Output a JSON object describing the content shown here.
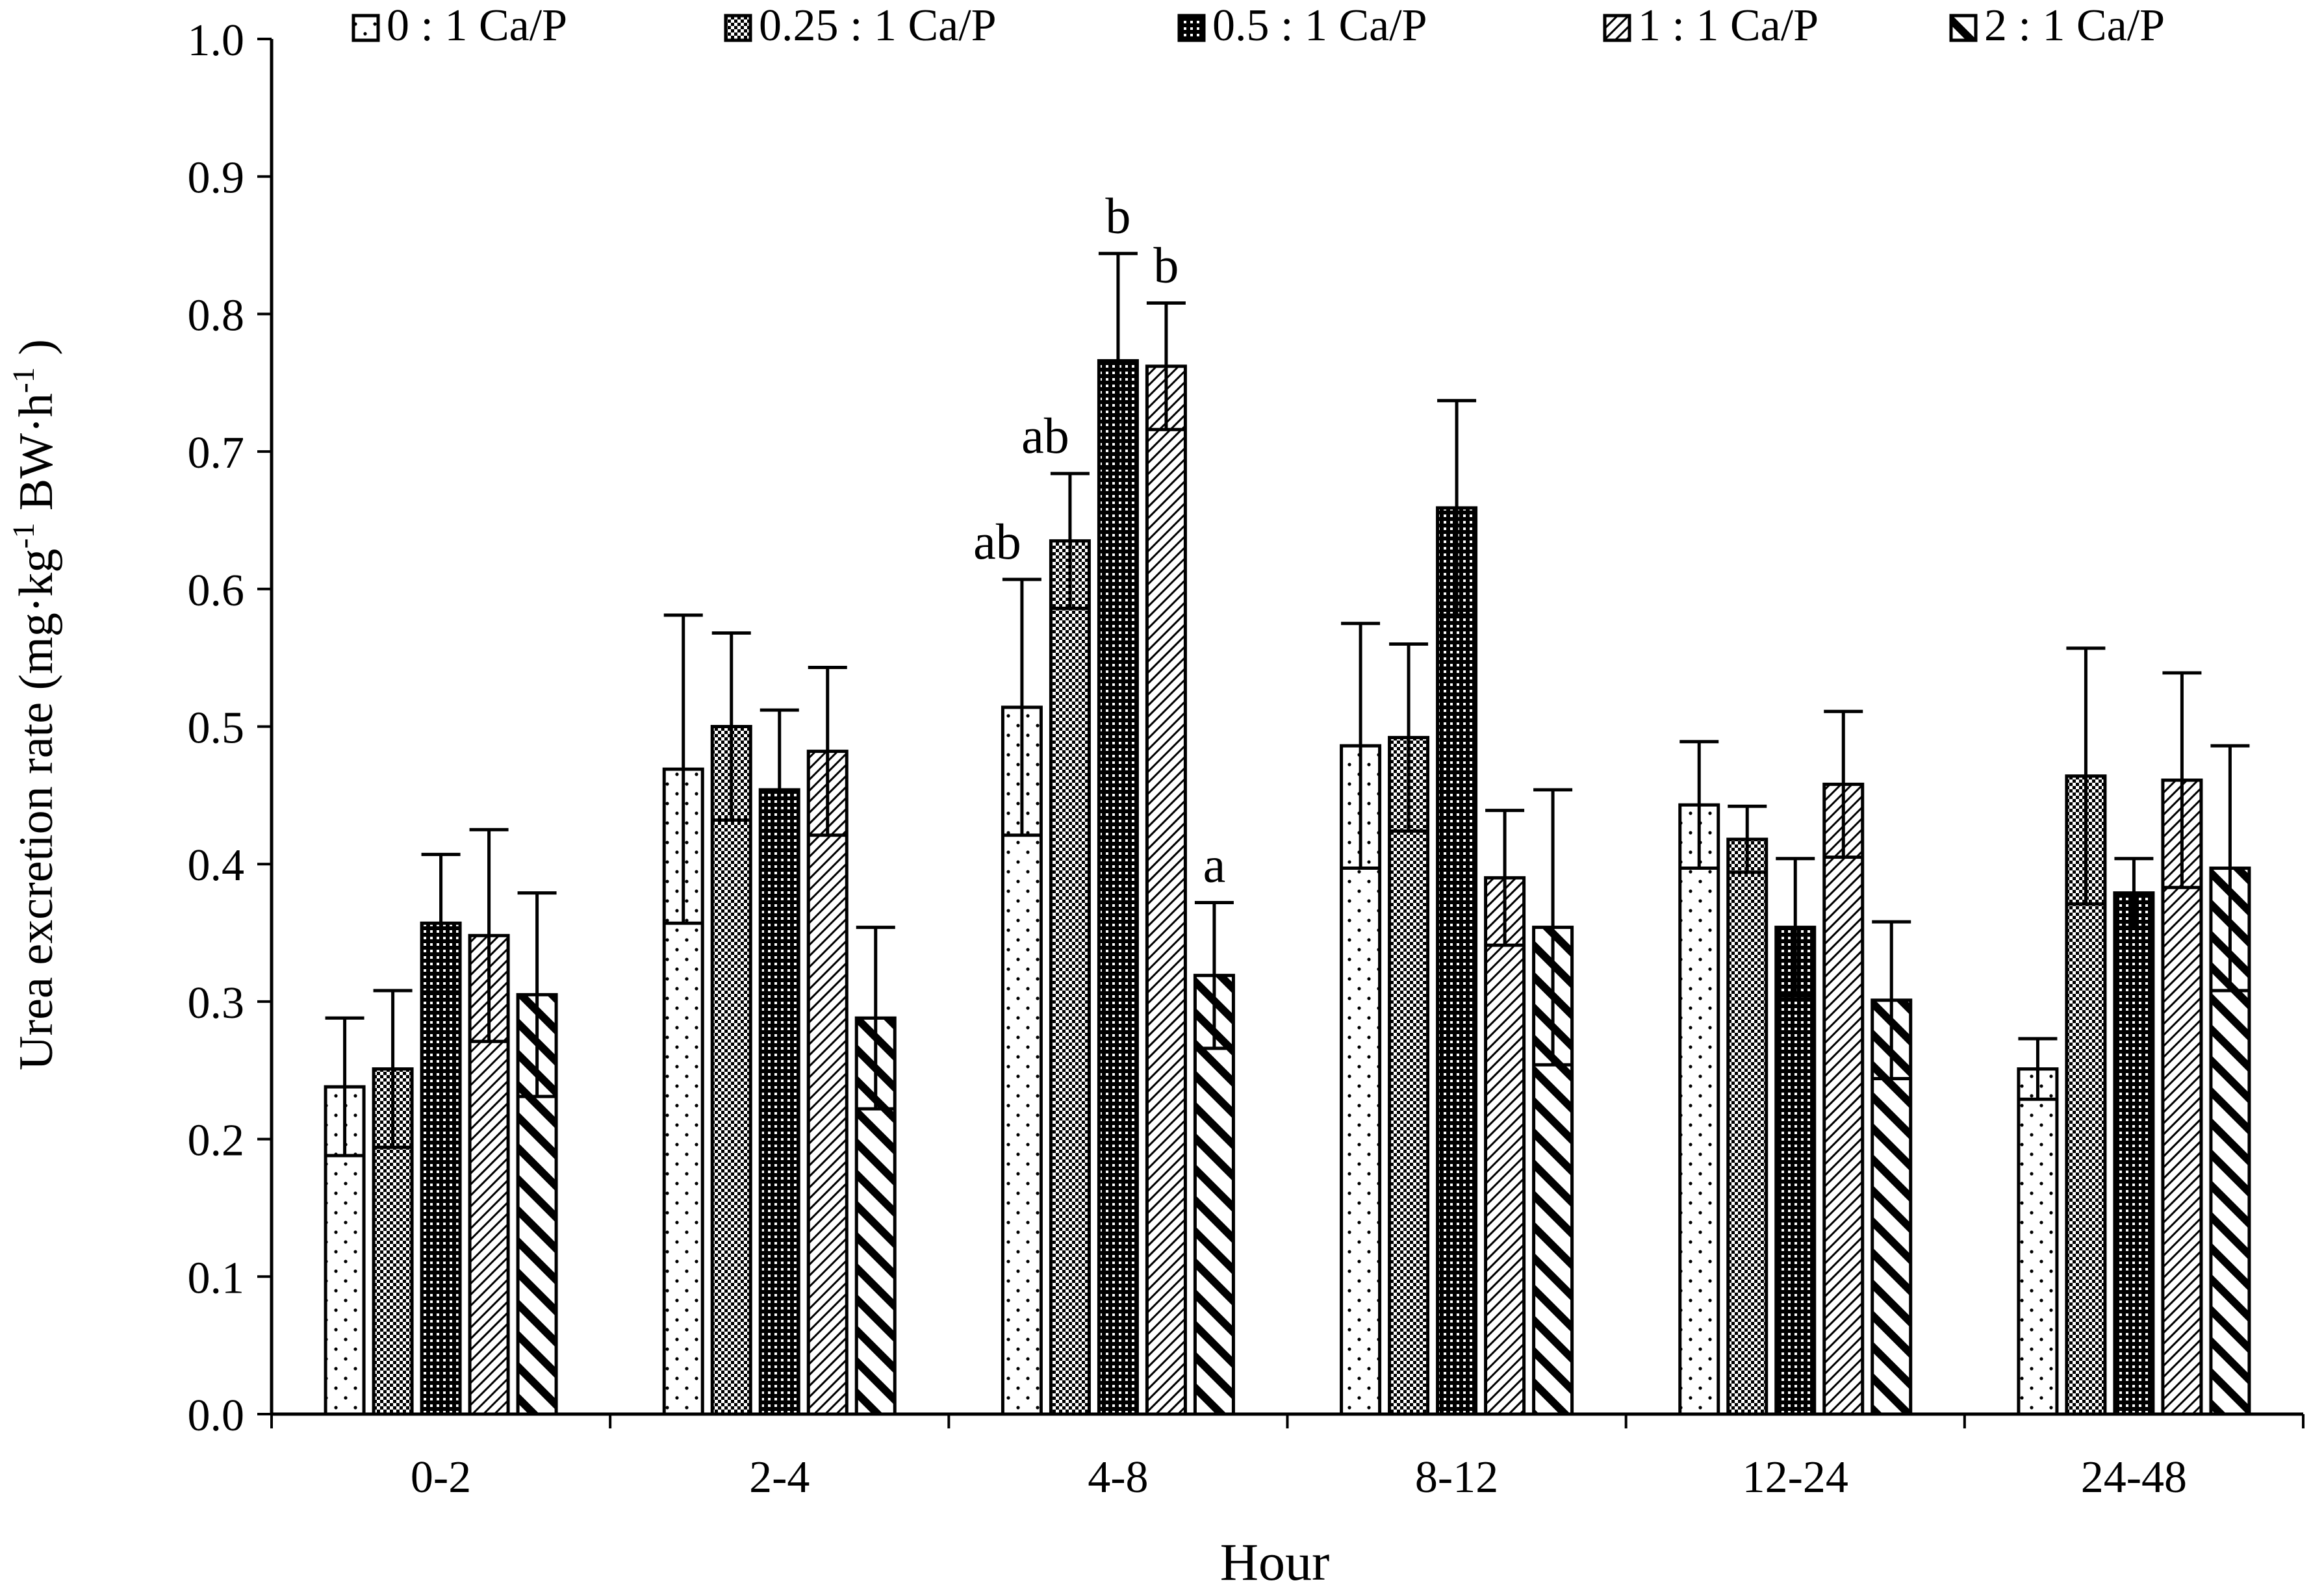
{
  "chart_data": {
    "type": "bar",
    "title": "",
    "xlabel": "Hour",
    "ylabel": {
      "main": "Urea excretion rate (mg·kg",
      "sup1": "-1",
      "mid": " BW·h",
      "sup2": "-1",
      "end": " )"
    },
    "ylim": [
      0,
      1.0
    ],
    "yticks": [
      "0.0",
      "0.1",
      "0.2",
      "0.3",
      "0.4",
      "0.5",
      "0.6",
      "0.7",
      "0.8",
      "0.9",
      "1.0"
    ],
    "categories": [
      "0-2",
      "2-4",
      "4-8",
      "8-12",
      "12-24",
      "24-48"
    ],
    "legend_position": "top",
    "grid": false,
    "series": [
      {
        "name": "0 : 1 Ca/P",
        "pattern": "dots",
        "values": [
          0.238,
          0.469,
          0.514,
          0.486,
          0.443,
          0.251
        ],
        "errors": [
          0.05,
          0.112,
          0.093,
          0.089,
          0.046,
          0.022
        ]
      },
      {
        "name": "0.25 : 1 Ca/P",
        "pattern": "checker",
        "values": [
          0.251,
          0.5,
          0.635,
          0.492,
          0.418,
          0.464
        ],
        "errors": [
          0.057,
          0.068,
          0.049,
          0.068,
          0.024,
          0.093
        ]
      },
      {
        "name": "0.5 : 1 Ca/P",
        "pattern": "dark-grid",
        "values": [
          0.357,
          0.454,
          0.766,
          0.659,
          0.354,
          0.379
        ],
        "errors": [
          0.05,
          0.058,
          0.078,
          0.078,
          0.05,
          0.025
        ]
      },
      {
        "name": "1 : 1 Ca/P",
        "pattern": "light-diagonal",
        "values": [
          0.348,
          0.482,
          0.762,
          0.39,
          0.458,
          0.461
        ],
        "errors": [
          0.077,
          0.061,
          0.046,
          0.049,
          0.053,
          0.078
        ]
      },
      {
        "name": "2 : 1 Ca/P",
        "pattern": "heavy-diagonal",
        "values": [
          0.305,
          0.288,
          0.319,
          0.354,
          0.301,
          0.397
        ],
        "errors": [
          0.074,
          0.066,
          0.053,
          0.1,
          0.057,
          0.089
        ]
      }
    ],
    "annotations": [
      {
        "category": 2,
        "series": 0,
        "text": "ab"
      },
      {
        "category": 2,
        "series": 1,
        "text": "ab"
      },
      {
        "category": 2,
        "series": 2,
        "text": "b"
      },
      {
        "category": 2,
        "series": 3,
        "text": "b"
      },
      {
        "category": 2,
        "series": 4,
        "text": "a"
      }
    ]
  }
}
